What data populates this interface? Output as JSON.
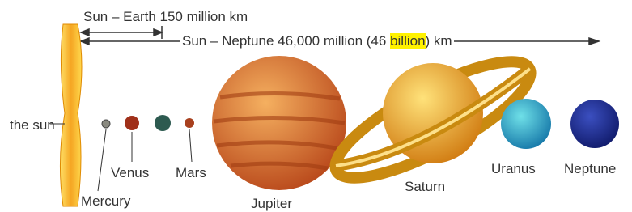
{
  "distances": {
    "earth": "Sun – Earth 150 million km",
    "neptune": {
      "before": "Sun – Neptune 46,000 million (46 ",
      "highlight": "billion",
      "after": ") km"
    }
  },
  "labels": {
    "sun": "the sun",
    "mercury": "Mercury",
    "venus": "Venus",
    "mars": "Mars",
    "jupiter": "Jupiter",
    "saturn": "Saturn",
    "uranus": "Uranus",
    "neptune": "Neptune"
  }
}
